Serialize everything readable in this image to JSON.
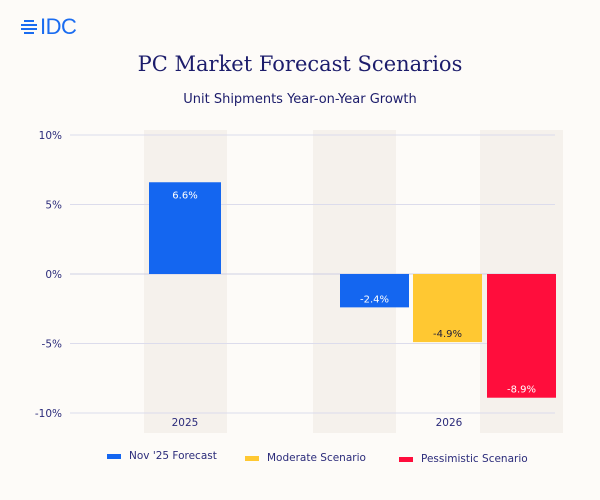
{
  "logo": {
    "text": "IDC",
    "color": "#1a6cf0"
  },
  "chart_data": {
    "type": "bar",
    "title": "PC Market Forecast Scenarios",
    "subtitle": "Unit Shipments Year-on-Year Growth",
    "categories": [
      "2025",
      "2026"
    ],
    "series": [
      {
        "name": "Nov '25 Forecast",
        "color": "#1466f0",
        "values": [
          6.6,
          -2.4
        ],
        "labels": [
          "6.6%",
          "-2.4%"
        ]
      },
      {
        "name": "Moderate Scenario",
        "color": "#ffc832",
        "values": [
          null,
          -4.9
        ],
        "labels": [
          null,
          "-4.9%"
        ]
      },
      {
        "name": "Pessimistic Scenario",
        "color": "#ff0d3c",
        "values": [
          null,
          -8.9
        ],
        "labels": [
          null,
          "-8.9%"
        ]
      }
    ],
    "yticks": [
      "10%",
      "5%",
      "0%",
      "-5%",
      "-10%"
    ],
    "ytick_values": [
      10,
      5,
      0,
      -5,
      -10
    ],
    "ylim": [
      -10,
      10
    ],
    "grid": true,
    "legend": "bottom"
  }
}
